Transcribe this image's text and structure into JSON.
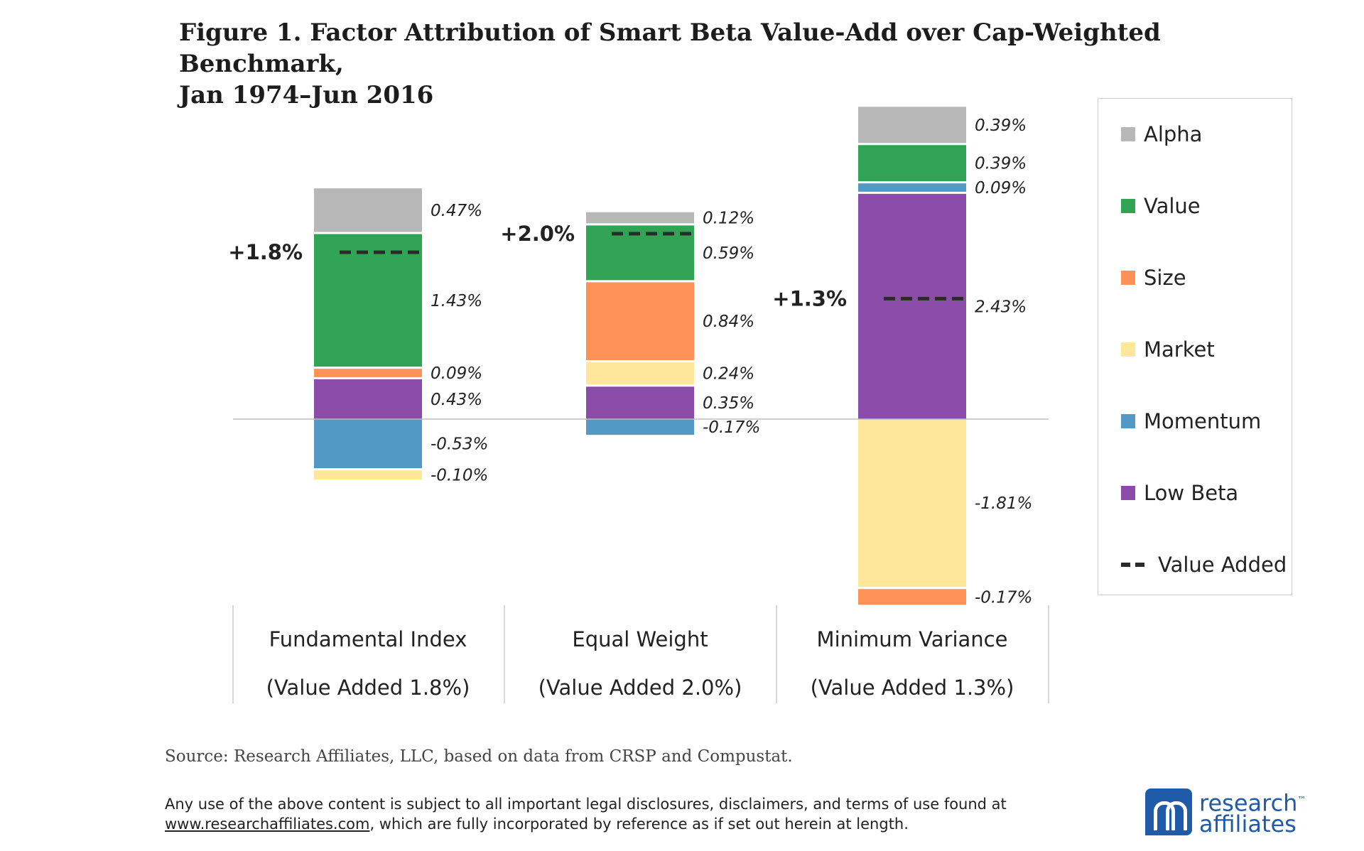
{
  "title_line1": "Figure 1. Factor Attribution of Smart Beta Value-Add over Cap-Weighted Benchmark,",
  "title_line2": "Jan 1974–Jun 2016",
  "source": "Source: Research Affiliates, LLC, based on data from CRSP and Compustat.",
  "disclaimer": {
    "line1": "Any use of the above content is subject to all important legal disclosures, disclaimers, and terms of use found at",
    "link": "www.researchaffiliates.com",
    "line2": ", which are fully incorporated by reference as if set out herein at length."
  },
  "logo": {
    "line1": "research",
    "tm": "™",
    "line2": "affiliates"
  },
  "colors": {
    "Alpha": "#b7b7b7",
    "Value": "#31a354",
    "Size": "#fc9258",
    "Market": "#fee69a",
    "Momentum": "#5399c6",
    "Low Beta": "#8b4ba8",
    "Value Added": "#2b2b2b"
  },
  "chart_data": {
    "type": "bar",
    "stacked": true,
    "categories": [
      {
        "name": "Fundamental Index",
        "sub": "(Value Added 1.8%)"
      },
      {
        "name": "Equal Weight",
        "sub": "(Value Added 2.0%)"
      },
      {
        "name": "Minimum Variance",
        "sub": "(Value Added 1.3%)"
      }
    ],
    "bars": [
      {
        "value_added": 1.8,
        "value_added_label": "+1.8%",
        "positive": [
          {
            "series": "Low Beta",
            "value": 0.43,
            "label": "0.43%"
          },
          {
            "series": "Size",
            "value": 0.09,
            "label": "0.09%"
          },
          {
            "series": "Value",
            "value": 1.43,
            "label": "1.43%"
          },
          {
            "series": "Alpha",
            "value": 0.47,
            "label": "0.47%"
          }
        ],
        "negative": [
          {
            "series": "Momentum",
            "value": -0.53,
            "label": "-0.53%"
          },
          {
            "series": "Market",
            "value": -0.1,
            "label": "-0.10%"
          }
        ]
      },
      {
        "value_added": 2.0,
        "value_added_label": "+2.0%",
        "positive": [
          {
            "series": "Low Beta",
            "value": 0.35,
            "label": "0.35%"
          },
          {
            "series": "Market",
            "value": 0.24,
            "label": "0.24%"
          },
          {
            "series": "Size",
            "value": 0.84,
            "label": "0.84%"
          },
          {
            "series": "Value",
            "value": 0.59,
            "label": "0.59%"
          },
          {
            "series": "Alpha",
            "value": 0.12,
            "label": "0.12%"
          }
        ],
        "negative": [
          {
            "series": "Momentum",
            "value": -0.17,
            "label": "-0.17%"
          }
        ]
      },
      {
        "value_added": 1.3,
        "value_added_label": "+1.3%",
        "positive": [
          {
            "series": "Low Beta",
            "value": 2.43,
            "label": "2.43%"
          },
          {
            "series": "Momentum",
            "value": 0.09,
            "label": "0.09%"
          },
          {
            "series": "Value",
            "value": 0.39,
            "label": "0.39%"
          },
          {
            "series": "Alpha",
            "value": 0.39,
            "label": "0.39%"
          }
        ],
        "negative": [
          {
            "series": "Market",
            "value": -1.81,
            "label": "-1.81%"
          },
          {
            "series": "Size",
            "value": -0.17,
            "label": "-0.17%"
          }
        ]
      }
    ],
    "legend": [
      "Alpha",
      "Value",
      "Size",
      "Market",
      "Momentum",
      "Low Beta",
      "Value Added"
    ],
    "legend_position": "right",
    "ylim": [
      -2.0,
      3.3
    ],
    "grid": false
  }
}
